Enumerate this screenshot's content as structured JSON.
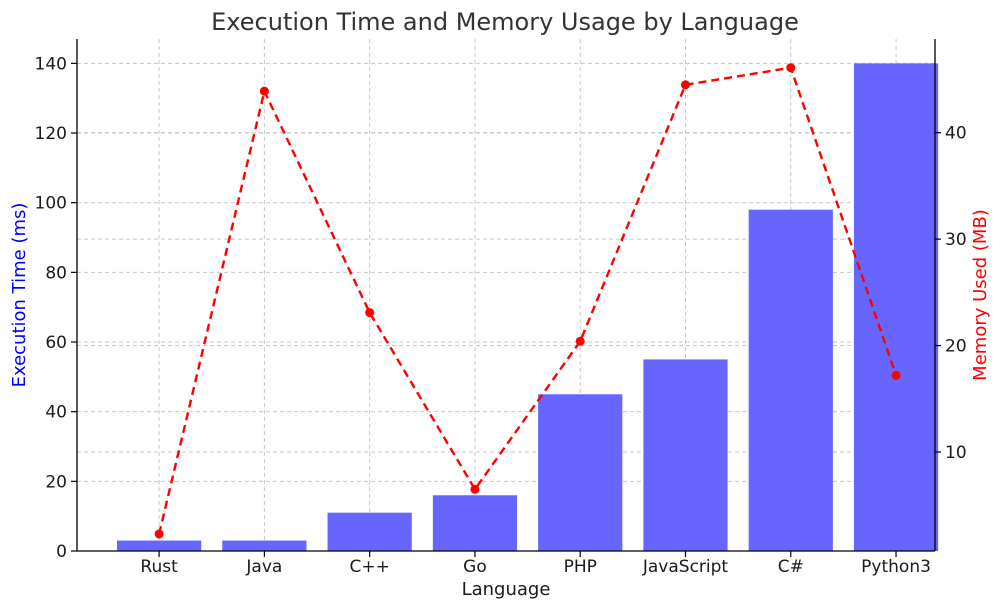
{
  "chart_data": {
    "type": "bar",
    "title": "Execution Time and Memory Usage by Language",
    "xlabel": "Language",
    "ylabel": "Execution Time (ms)",
    "ylabel_right": "Memory Used (MB)",
    "categories": [
      "Rust",
      "Java",
      "C++",
      "Go",
      "PHP",
      "JavaScript",
      "C#",
      "Python3"
    ],
    "series": [
      {
        "name": "Execution Time (ms)",
        "type": "bar",
        "axis": "left",
        "color": "#6666ff",
        "values": [
          3,
          3,
          11,
          16,
          45,
          55,
          98,
          140
        ]
      },
      {
        "name": "Memory Used (MB)",
        "type": "line",
        "axis": "right",
        "color": "#ff0000",
        "line_style": "dashed",
        "marker": "circle",
        "values": [
          2.3,
          43.9,
          23.1,
          6.5,
          20.4,
          44.5,
          46.1,
          17.2
        ]
      }
    ],
    "ylim": [
      0,
      147
    ],
    "yticks": [
      0,
      20,
      40,
      60,
      80,
      100,
      120,
      140
    ],
    "ylim_right": [
      0.7,
      48.8
    ],
    "yticks_right": [
      10,
      20,
      30,
      40
    ],
    "grid": true,
    "legend": "none"
  }
}
